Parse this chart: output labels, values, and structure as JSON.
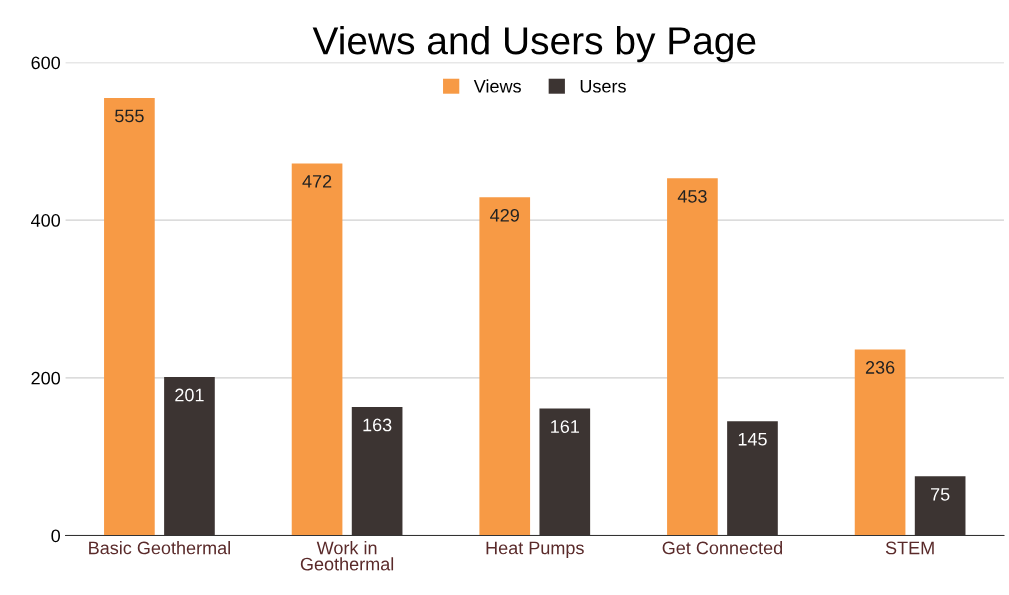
{
  "chart_data": {
    "type": "bar",
    "title": "Views and Users by Page",
    "categories": [
      "Basic Geothermal",
      "Work in\nGeothermal",
      "Heat Pumps",
      "Get Connected",
      "STEM"
    ],
    "series": [
      {
        "name": "Views",
        "color": "#f79a45",
        "values": [
          555,
          472,
          429,
          453,
          236
        ]
      },
      {
        "name": "Users",
        "color": "#3c3432",
        "values": [
          201,
          163,
          161,
          145,
          75
        ]
      }
    ],
    "ylim": [
      0,
      600
    ],
    "yticks": [
      0,
      200,
      400,
      600
    ],
    "grid": "y",
    "legend": "top",
    "data_labels": true
  }
}
